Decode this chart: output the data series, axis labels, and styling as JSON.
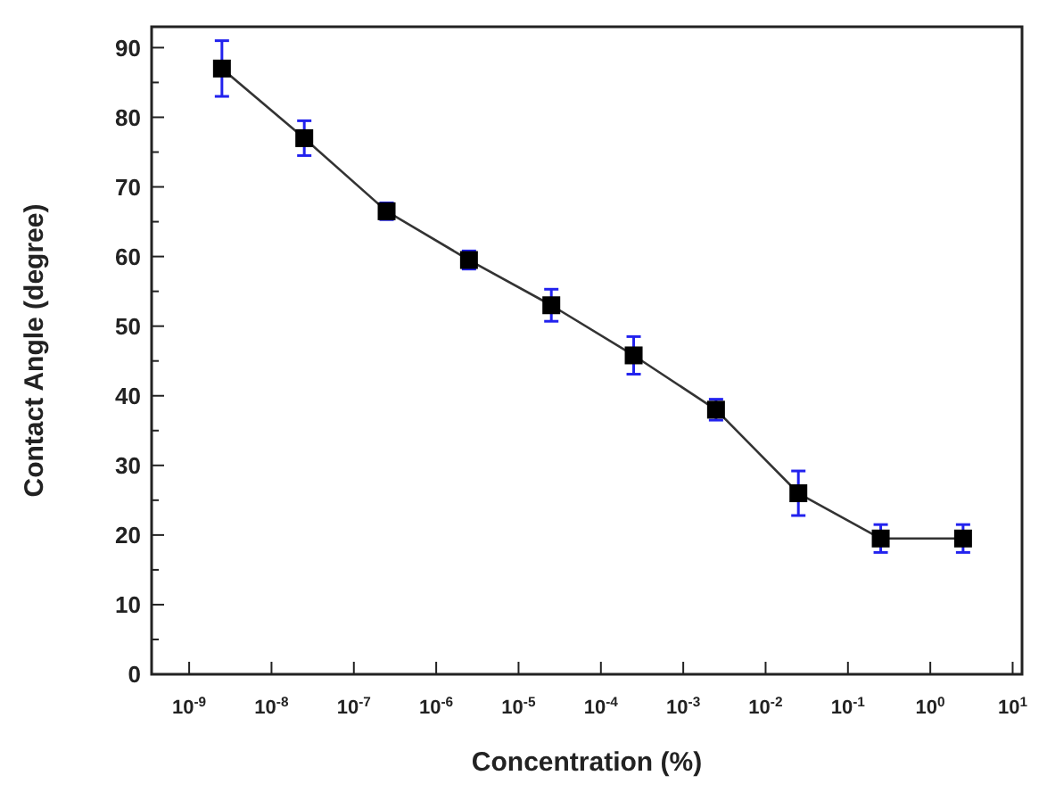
{
  "chart_data": {
    "type": "line",
    "xlabel": "Concentration (%)",
    "ylabel": "Contact Angle (degree)",
    "log": "x",
    "marker": "square",
    "line_style": "solid",
    "grid": false,
    "xlim": [
      3.5e-10,
      13
    ],
    "ylim": [
      0,
      93
    ],
    "xticks": [
      {
        "value": 1e-09,
        "label": "10$^{-9}$"
      },
      {
        "value": 1e-08,
        "label": "10$^{-8}$"
      },
      {
        "value": 1e-07,
        "label": "10$^{-7}$"
      },
      {
        "value": 1e-06,
        "label": "10$^{-6}$"
      },
      {
        "value": 1e-05,
        "label": "10$^{-5}$"
      },
      {
        "value": 0.0001,
        "label": "10$^{-4}$"
      },
      {
        "value": 0.001,
        "label": "10$^{-3}$"
      },
      {
        "value": 0.01,
        "label": "10$^{-2}$"
      },
      {
        "value": 0.1,
        "label": "10$^{-1}$"
      },
      {
        "value": 1,
        "label": "10$^{0}$"
      },
      {
        "value": 10,
        "label": "10$^{1}$"
      }
    ],
    "yticks": [
      0,
      {
        "value": 5,
        "label": null
      },
      10,
      {
        "value": 15,
        "label": null
      },
      20,
      {
        "value": 25,
        "label": null
      },
      30,
      {
        "value": 35,
        "label": null
      },
      40,
      {
        "value": 45,
        "label": null
      },
      50,
      {
        "value": 55,
        "label": null
      },
      60,
      {
        "value": 65,
        "label": null
      },
      70,
      {
        "value": 75,
        "label": null
      },
      80,
      {
        "value": 85,
        "label": null
      },
      90
    ],
    "x": [
      2.5e-09,
      2.5e-08,
      2.5e-07,
      2.5e-06,
      2.5e-05,
      0.00025,
      0.0025,
      0.025,
      0.25,
      2.5
    ],
    "series": [
      {
        "color": "#000000",
        "values": [
          87,
          77,
          66.5,
          59.5,
          53,
          45.8,
          38,
          26,
          19.5,
          19.5
        ],
        "errors": [
          4,
          2.5,
          1.2,
          1.3,
          2.3,
          2.7,
          1.5,
          3.2,
          2,
          2
        ]
      }
    ]
  }
}
